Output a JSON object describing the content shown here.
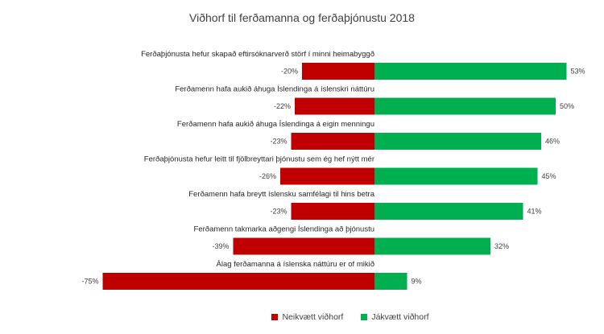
{
  "chart_data": {
    "type": "bar",
    "orientation": "horizontal-diverging",
    "title": "Viðhorf til ferðamanna og ferðaþjónustu 2018",
    "categories": [
      "Ferðaþjónusta hefur skapað eftirsóknarverð störf í minni heimabyggð",
      "Ferðamenn hafa aukið áhuga Íslendinga á íslenskri náttúru",
      "Ferðamenn hafa aukið áhuga Íslendinga á eigin menningu",
      "Ferðaþjónusta hefur leitt til fjölbreyttari þjónustu sem ég hef nýtt mér",
      "Ferðamenn hafa breytt íslensku samfélagi til hins betra",
      "Ferðamenn takmarka aðgengi Íslendinga að þjónustu",
      "Álag ferðamanna á íslenska náttúru er of mikið"
    ],
    "series": [
      {
        "name": "Neikvætt viðhorf",
        "color": "#c00000",
        "values": [
          -20,
          -22,
          -23,
          -26,
          -23,
          -39,
          -75
        ],
        "labels": [
          "-20%",
          "-22%",
          "-23%",
          "-26%",
          "-23%",
          "-39%",
          "-75%"
        ]
      },
      {
        "name": "Jákvætt viðhorf",
        "color": "#00b050",
        "values": [
          53,
          50,
          46,
          45,
          41,
          32,
          9
        ],
        "labels": [
          "53%",
          "50%",
          "46%",
          "45%",
          "41%",
          "32%",
          "9%"
        ]
      }
    ],
    "xlim": [
      -80,
      60
    ],
    "grid": false,
    "legend_position": "bottom"
  }
}
